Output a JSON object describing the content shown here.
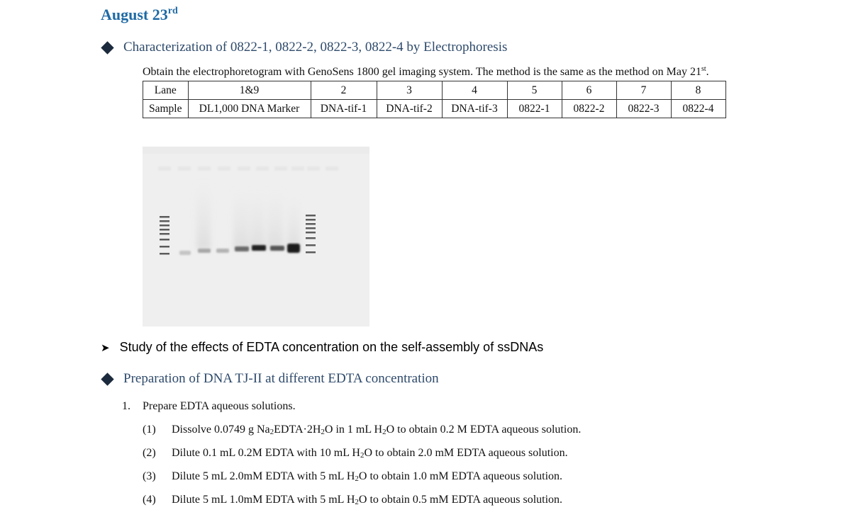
{
  "date": {
    "text": "August 23",
    "sup": "rd"
  },
  "section1": {
    "heading": "Characterization of 0822-1, 0822-2, 0822-3, 0822-4 by Electrophoresis",
    "intro": "Obtain the electrophoretogram with GenoSens 1800 gel imaging system. The method is the same as the method on May 21",
    "intro_sup": "st",
    "intro_end": ".",
    "table": {
      "row_labels": [
        "Lane",
        "Sample"
      ],
      "lanes": [
        "1&9",
        "2",
        "3",
        "4",
        "5",
        "6",
        "7",
        "8"
      ],
      "samples": [
        "DL1,000 DNA Marker",
        "DNA-tif-1",
        "DNA-tif-2",
        "DNA-tif-3",
        "0822-1",
        "0822-2",
        "0822-3",
        "0822-4"
      ]
    }
  },
  "study_heading": "Study of the effects of EDTA concentration on the self-assembly of ssDNAs",
  "section2": {
    "heading": "Preparation of DNA TJ-II at different EDTA concentration",
    "step1": {
      "num": "1.",
      "text": "Prepare EDTA aqueous solutions."
    },
    "items": [
      {
        "num": "(1)",
        "a": "Dissolve 0.0749 g Na",
        "b": "2",
        "c": "EDTA·2H",
        "d": "2",
        "e": "O in 1 mL H",
        "f": "2",
        "g": "O to obtain 0.2 M EDTA aqueous solution."
      },
      {
        "num": "(2)",
        "a": "Dilute 0.1 mL 0.2M EDTA with 10 mL H",
        "b": "2",
        "c": "O to obtain 2.0 mM EDTA aqueous solution."
      },
      {
        "num": "(3)",
        "a": "Dilute 5 mL 2.0mM EDTA with 5 mL H",
        "b": "2",
        "c": "O to obtain 1.0 mM EDTA aqueous solution."
      },
      {
        "num": "(4)",
        "a": "Dilute 5 mL 1.0mM EDTA with 5 mL H",
        "b": "2",
        "c": "O to obtain 0.5 mM EDTA aqueous solution."
      }
    ]
  },
  "colors": {
    "date": "#1f6aa5",
    "heading": "#2e4a6b",
    "diamond": "#1b2a3c"
  }
}
